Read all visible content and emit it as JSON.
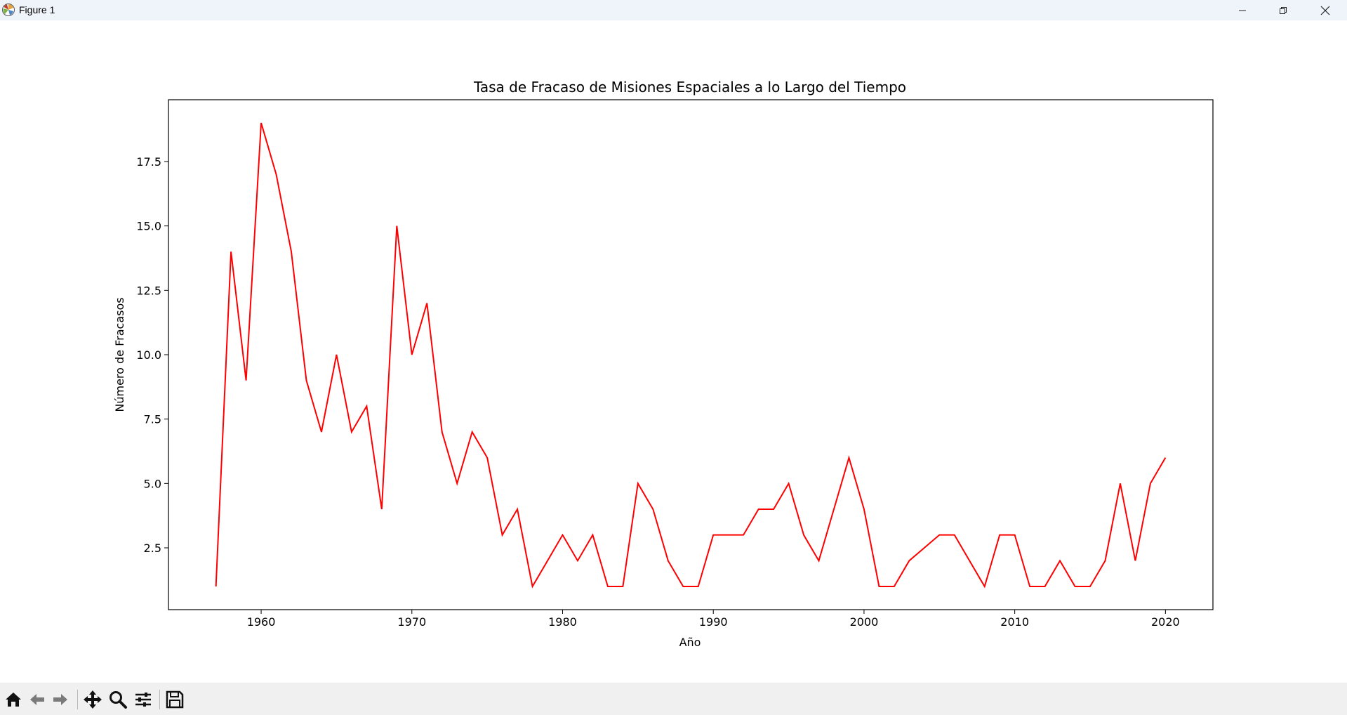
{
  "window": {
    "title": "Figure 1"
  },
  "toolbar": {
    "buttons": [
      "home-icon",
      "back-icon",
      "forward-icon",
      "pan-icon",
      "zoom-icon",
      "configure-icon",
      "save-icon"
    ]
  },
  "chart_data": {
    "type": "line",
    "title": "Tasa de Fracaso de Misiones Espaciales a lo Largo del Tiempo",
    "xlabel": "Año",
    "ylabel": "Número de Fracasos",
    "xlim": [
      1953.85,
      2023.15
    ],
    "ylim": [
      0.1,
      19.9
    ],
    "xticks": [
      1960,
      1970,
      1980,
      1990,
      2000,
      2010,
      2020
    ],
    "yticks": [
      2.5,
      5.0,
      7.5,
      10.0,
      12.5,
      15.0,
      17.5
    ],
    "ytick_labels": [
      "2.5",
      "5.0",
      "7.5",
      "10.0",
      "12.5",
      "15.0",
      "17.5"
    ],
    "grid": false,
    "color": "#ff0000",
    "x": [
      1957,
      1958,
      1959,
      1960,
      1961,
      1962,
      1963,
      1964,
      1965,
      1966,
      1967,
      1968,
      1969,
      1970,
      1971,
      1972,
      1973,
      1974,
      1975,
      1976,
      1977,
      1978,
      1979,
      1980,
      1981,
      1982,
      1983,
      1984,
      1985,
      1986,
      1987,
      1988,
      1989,
      1990,
      1991,
      1992,
      1993,
      1994,
      1995,
      1996,
      1997,
      1998,
      1999,
      2000,
      2001,
      2002,
      2003,
      2004,
      2005,
      2006,
      2007,
      2008,
      2009,
      2010,
      2011,
      2012,
      2013,
      2014,
      2015,
      2016,
      2017,
      2018,
      2019,
      2020
    ],
    "values": [
      1,
      14,
      9,
      19,
      17,
      14,
      9,
      7,
      10,
      7,
      8,
      4,
      15,
      10,
      12,
      7,
      5,
      7,
      6,
      3,
      4,
      1,
      2,
      3,
      2,
      3,
      1,
      1,
      5,
      4,
      2,
      1,
      1,
      3,
      3,
      3,
      4,
      4,
      5,
      3,
      2,
      4,
      6,
      4,
      1,
      1,
      2,
      2.5,
      3,
      3,
      2,
      1,
      3,
      3,
      1,
      1,
      2,
      1,
      1,
      2,
      5,
      2,
      5,
      6
    ]
  }
}
